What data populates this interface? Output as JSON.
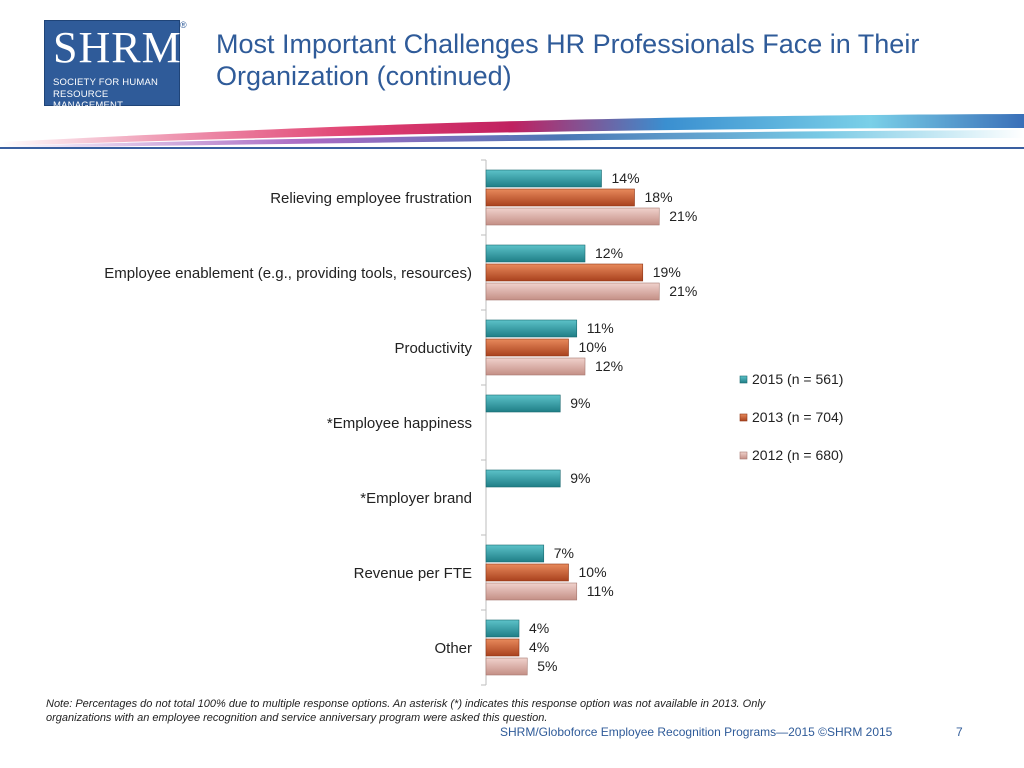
{
  "logo": {
    "main": "SHRM",
    "line1": "SOCIETY FOR HUMAN",
    "line2": "RESOURCE MANAGEMENT",
    "reg": "®"
  },
  "slide": {
    "title_line1": "Most Important Challenges HR Professionals Face in Their",
    "title_line2": "Organization (continued)",
    "note_line1": "Note: Percentages do not total 100% due to multiple response options. An asterisk (*) indicates this response option was not available in 2013. Only",
    "note_line2": "organizations with an employee recognition and service anniversary program were asked this question.",
    "footer": "SHRM/Globoforce Employee Recognition Programs—2015 ©SHRM 2015",
    "page_number": "7"
  },
  "colors": {
    "brand_blue": "#2f5b99",
    "series_2015": "#2a9aa3",
    "series_2013": "#c8582e",
    "series_2012": "#d9a9a0"
  },
  "chart_data": {
    "type": "bar",
    "orientation": "horizontal",
    "categories": [
      "Relieving employee frustration",
      "Employee enablement (e.g., providing tools, resources)",
      "Productivity",
      "*Employee happiness",
      "*Employer brand",
      "Revenue per FTE",
      "Other"
    ],
    "series": [
      {
        "name": "2015 (n = 561)",
        "values": [
          14,
          12,
          11,
          9,
          9,
          7,
          4
        ]
      },
      {
        "name": "2013 (n = 704)",
        "values": [
          18,
          19,
          10,
          null,
          null,
          10,
          4
        ]
      },
      {
        "name": "2012 (n = 680)",
        "values": [
          21,
          21,
          12,
          null,
          null,
          11,
          5
        ]
      }
    ],
    "value_suffix": "%",
    "legend_position": "right",
    "grid": false
  }
}
